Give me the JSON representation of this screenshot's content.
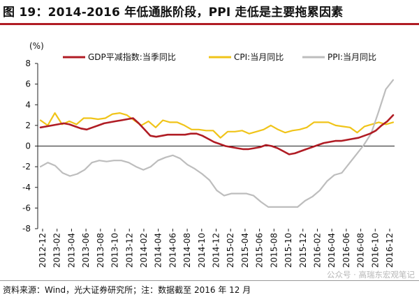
{
  "header": {
    "title": "图 19：2014-2016 年低通胀阶段，PPI 走低是主要拖累因素"
  },
  "footer": {
    "source": "资料来源：Wind，光大证券研究所；注：数据截至 2016 年 12 月",
    "watermark": "公众号 · 高瑞东宏观笔记"
  },
  "chart_data": {
    "type": "line",
    "ylabel": "(%)",
    "ylim": [
      -8,
      8
    ],
    "yticks": [
      8,
      6,
      4,
      2,
      0,
      -2,
      -4,
      -6,
      -8
    ],
    "grid": false,
    "legend_position": "top",
    "x_labels": [
      "2012-12",
      "2013-02",
      "2013-04",
      "2013-06",
      "2013-08",
      "2013-10",
      "2013-12",
      "2014-02",
      "2014-04",
      "2014-06",
      "2014-08",
      "2014-10",
      "2014-12",
      "2015-02",
      "2015-04",
      "2015-06",
      "2015-08",
      "2015-10",
      "2015-12",
      "2016-02",
      "2016-04",
      "2016-06",
      "2016-08",
      "2016-10",
      "2016-12"
    ],
    "series": [
      {
        "name": "GDP平减指数:当季同比",
        "color": "#b01c24",
        "values": [
          1.8,
          1.9,
          2.0,
          2.1,
          2.2,
          2.1,
          1.9,
          1.7,
          1.6,
          1.8,
          2.0,
          2.2,
          2.3,
          2.4,
          2.5,
          2.6,
          2.7,
          2.2,
          1.6,
          1.0,
          0.9,
          1.0,
          1.1,
          1.1,
          1.1,
          1.1,
          1.2,
          1.2,
          1.0,
          0.7,
          0.4,
          0.2,
          0.0,
          -0.1,
          -0.2,
          -0.3,
          -0.3,
          -0.2,
          -0.1,
          0.1,
          0.0,
          -0.2,
          -0.5,
          -0.8,
          -0.7,
          -0.5,
          -0.3,
          -0.1,
          0.1,
          0.3,
          0.4,
          0.5,
          0.5,
          0.6,
          0.7,
          0.8,
          1.0,
          1.2,
          1.5,
          2.0,
          2.4,
          3.0
        ]
      },
      {
        "name": "CPI:当月同比",
        "color": "#f0c419",
        "values": [
          2.5,
          2.0,
          3.2,
          2.1,
          2.4,
          2.1,
          2.7,
          2.7,
          2.6,
          2.7,
          3.1,
          3.2,
          3.0,
          2.5,
          2.0,
          2.4,
          1.8,
          2.5,
          2.3,
          2.3,
          2.0,
          1.6,
          1.6,
          1.5,
          1.5,
          0.8,
          1.4,
          1.4,
          1.5,
          1.2,
          1.4,
          1.6,
          2.0,
          1.6,
          1.3,
          1.5,
          1.6,
          1.8,
          2.3,
          2.3,
          2.3,
          2.0,
          1.9,
          1.8,
          1.3,
          1.9,
          2.1,
          2.3,
          2.1,
          2.3
        ]
      },
      {
        "name": "PPI:当月同比",
        "color": "#bdbdbd",
        "values": [
          -2.0,
          -1.6,
          -1.9,
          -2.6,
          -2.9,
          -2.7,
          -2.3,
          -1.6,
          -1.4,
          -1.5,
          -1.4,
          -1.4,
          -1.6,
          -2.0,
          -2.3,
          -2.0,
          -1.4,
          -1.1,
          -0.9,
          -1.2,
          -1.8,
          -2.2,
          -2.7,
          -3.3,
          -4.3,
          -4.8,
          -4.6,
          -4.6,
          -4.6,
          -4.8,
          -5.4,
          -5.9,
          -5.9,
          -5.9,
          -5.9,
          -5.9,
          -5.3,
          -4.9,
          -4.3,
          -3.4,
          -2.8,
          -2.6,
          -1.7,
          -0.8,
          0.1,
          1.2,
          3.3,
          5.5,
          6.4
        ]
      }
    ]
  }
}
